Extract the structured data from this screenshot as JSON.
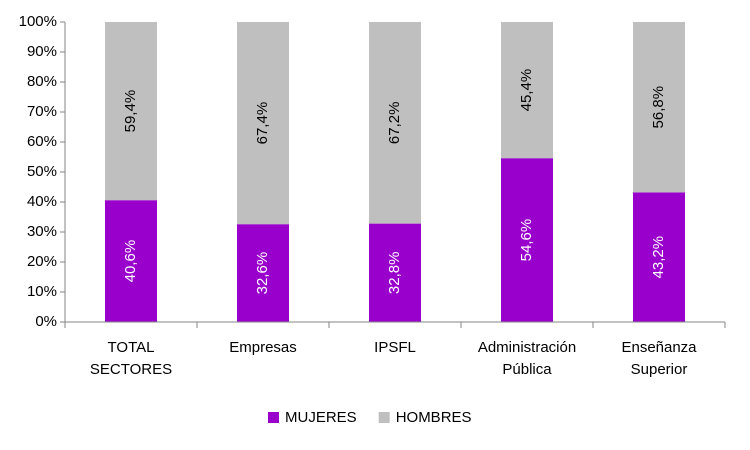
{
  "chart_data": {
    "type": "stacked_bar",
    "categories": [
      "TOTAL SECTORES",
      "Empresas",
      "IPSFL",
      "Administración Pública",
      "Enseñanza Superior"
    ],
    "series": [
      {
        "name": "MUJERES",
        "color": "#9900cc",
        "values": [
          40.6,
          32.6,
          32.8,
          54.6,
          43.2
        ],
        "value_labels": [
          "40,6%",
          "32,6%",
          "32,8%",
          "54,6%",
          "43,2%"
        ]
      },
      {
        "name": "HOMBRES",
        "color": "#bfbfbf",
        "values": [
          59.4,
          67.4,
          67.2,
          45.4,
          56.8
        ],
        "value_labels": [
          "59,4%",
          "67,4%",
          "67,2%",
          "45,4%",
          "56,8%"
        ]
      }
    ],
    "ylim": [
      0,
      100
    ],
    "yticks": [
      {
        "value": 0,
        "label": "0%"
      },
      {
        "value": 10,
        "label": "10%"
      },
      {
        "value": 20,
        "label": "20%"
      },
      {
        "value": 30,
        "label": "30%"
      },
      {
        "value": 40,
        "label": "40%"
      },
      {
        "value": 50,
        "label": "50%"
      },
      {
        "value": 60,
        "label": "60%"
      },
      {
        "value": 70,
        "label": "70%"
      },
      {
        "value": 80,
        "label": "80%"
      },
      {
        "value": 90,
        "label": "90%"
      },
      {
        "value": 100,
        "label": "100%"
      }
    ],
    "legend": "bottom"
  }
}
